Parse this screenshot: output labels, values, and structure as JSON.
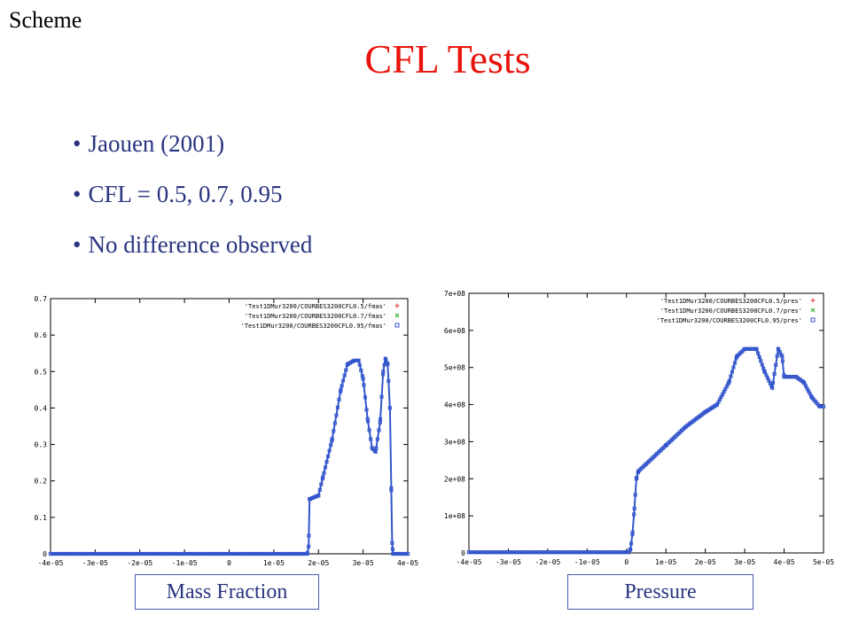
{
  "slide": {
    "tag": "Scheme",
    "title": "CFL Tests",
    "bullets": [
      "Jaouen  (2001)",
      "CFL = 0.5, 0.7, 0.95",
      "No difference observed"
    ],
    "colors": {
      "title": "#e8140c",
      "bullets": "#2a3580",
      "caption_border": "#4a5ab0"
    }
  },
  "chart_data": [
    {
      "type": "scatter",
      "caption": "Mass Fraction",
      "xlim": [
        -4e-05,
        4e-05
      ],
      "ylim": [
        0,
        0.7
      ],
      "xticks": [
        "-4e-05",
        "-3e-05",
        "-2e-05",
        "-1e-05",
        "0",
        "1e-05",
        "2e-05",
        "3e-05",
        "4e-05"
      ],
      "yticks": [
        "0",
        "0.1",
        "0.2",
        "0.3",
        "0.4",
        "0.5",
        "0.6",
        "0.7"
      ],
      "legend_position": "top-right",
      "series": [
        {
          "name": "'Test1DMur3200/COURBES3200CFL0.5/fmas'",
          "color": "#e03030",
          "marker": "+"
        },
        {
          "name": "'Test1DMur3200/COURBES3200CFL0.7/fmas'",
          "color": "#20b020",
          "marker": "x"
        },
        {
          "name": "'Test1DMur3200/COURBES3200CFL0.95/fmas'",
          "color": "#3355cc",
          "marker": "square"
        }
      ],
      "curve": [
        [
          -4e-05,
          0
        ],
        [
          1.75e-05,
          0
        ],
        [
          1.78e-05,
          0.02
        ],
        [
          1.8e-05,
          0.15
        ],
        [
          2e-05,
          0.16
        ],
        [
          2.1e-05,
          0.21
        ],
        [
          2.3e-05,
          0.31
        ],
        [
          2.5e-05,
          0.45
        ],
        [
          2.65e-05,
          0.52
        ],
        [
          2.8e-05,
          0.53
        ],
        [
          2.9e-05,
          0.53
        ],
        [
          3e-05,
          0.48
        ],
        [
          3.1e-05,
          0.37
        ],
        [
          3.2e-05,
          0.29
        ],
        [
          3.28e-05,
          0.28
        ],
        [
          3.38e-05,
          0.36
        ],
        [
          3.45e-05,
          0.5
        ],
        [
          3.5e-05,
          0.535
        ],
        [
          3.55e-05,
          0.52
        ],
        [
          3.6e-05,
          0.4
        ],
        [
          3.63e-05,
          0.18
        ],
        [
          3.65e-05,
          0.03
        ],
        [
          3.67e-05,
          0
        ],
        [
          4e-05,
          0
        ]
      ]
    },
    {
      "type": "scatter",
      "caption": "Pressure",
      "xlim": [
        -4e-05,
        5e-05
      ],
      "ylim": [
        0,
        700000000.0
      ],
      "xticks": [
        "-4e-05",
        "-3e-05",
        "-2e-05",
        "-1e-05",
        "0",
        "1e-05",
        "2e-05",
        "3e-05",
        "4e-05",
        "5e-05"
      ],
      "yticks": [
        "0",
        "1e+08",
        "2e+08",
        "3e+08",
        "4e+08",
        "5e+08",
        "6e+08",
        "7e+08"
      ],
      "legend_position": "top-right",
      "series": [
        {
          "name": "'Test1DMur3200/COURBES3200CFL0.5/pres'",
          "color": "#e03030",
          "marker": "+"
        },
        {
          "name": "'Test1DMur3200/COURBES3200CFL0.7/pres'",
          "color": "#20b020",
          "marker": "x"
        },
        {
          "name": "'Test1DMur3200/COURBES3200CFL0.95/pres'",
          "color": "#3355cc",
          "marker": "square"
        }
      ],
      "curve": [
        [
          -4e-05,
          2000000.0
        ],
        [
          5e-07,
          2000000.0
        ],
        [
          1e-06,
          10000000.0
        ],
        [
          1.5e-06,
          50000000.0
        ],
        [
          2e-06,
          120000000.0
        ],
        [
          2.5e-06,
          200000000.0
        ],
        [
          3e-06,
          220000000.0
        ],
        [
          5e-06,
          240000000.0
        ],
        [
          1e-05,
          290000000.0
        ],
        [
          1.5e-05,
          340000000.0
        ],
        [
          2e-05,
          380000000.0
        ],
        [
          2.3e-05,
          400000000.0
        ],
        [
          2.6e-05,
          460000000.0
        ],
        [
          2.8e-05,
          530000000.0
        ],
        [
          3e-05,
          550000000.0
        ],
        [
          3.3e-05,
          550000000.0
        ],
        [
          3.5e-05,
          490000000.0
        ],
        [
          3.7e-05,
          445000000.0
        ],
        [
          3.85e-05,
          550000000.0
        ],
        [
          3.95e-05,
          530000000.0
        ],
        [
          4e-05,
          475000000.0
        ],
        [
          4.3e-05,
          475000000.0
        ],
        [
          4.5e-05,
          460000000.0
        ],
        [
          4.7e-05,
          420000000.0
        ],
        [
          4.9e-05,
          395000000.0
        ],
        [
          5e-05,
          395000000.0
        ]
      ]
    }
  ]
}
